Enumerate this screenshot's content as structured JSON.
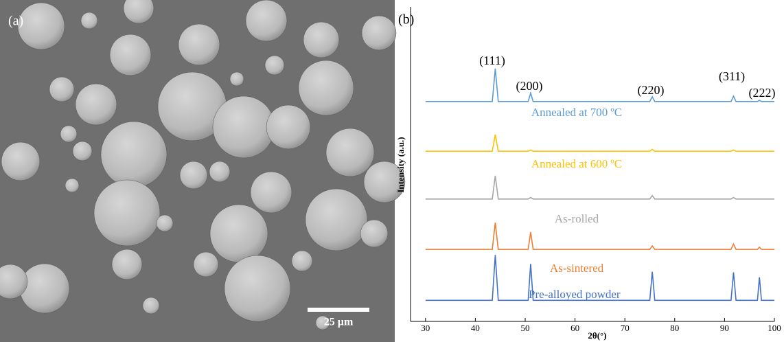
{
  "panel_a": {
    "label": "(a)",
    "scale_bar": "25 µm"
  },
  "chart_data": {
    "type": "line",
    "panel_label": "(b)",
    "ylabel": "Intensity (a.u.)",
    "xlabel": "2θ(°)",
    "xlim": [
      27,
      100
    ],
    "xticks": [
      30,
      40,
      50,
      60,
      70,
      80,
      90,
      100
    ],
    "ylim": [
      0,
      100
    ],
    "annotations": [
      "(111)",
      "(200)",
      "(220)",
      "(311)",
      "(222)"
    ],
    "x": [
      30,
      43.4,
      44,
      44.6,
      50.6,
      51.1,
      51.6,
      75,
      75.5,
      76,
      91.3,
      91.8,
      92.3,
      96.6,
      97,
      97.4,
      100
    ],
    "series": [
      {
        "name": "Annealed at 700 ºC",
        "color": "#5b9bd5",
        "values": [
          69.9,
          69.9,
          80.4,
          69.9,
          69.9,
          72.6,
          69.9,
          69.9,
          71.4,
          69.9,
          69.9,
          71.6,
          69.9,
          69.9,
          70.3,
          69.9,
          69.9
        ]
      },
      {
        "name": "Annealed at 600 ºC",
        "color": "#ffc000",
        "values": [
          54.1,
          54.1,
          59.4,
          54.1,
          54.1,
          54.5,
          54.1,
          54.1,
          54.7,
          54.1,
          54.1,
          54.5,
          54.1,
          54.1,
          54.1,
          54.1,
          54.1
        ]
      },
      {
        "name": "As-rolled",
        "color": "#a5a5a5",
        "values": [
          38.9,
          38.9,
          46.3,
          38.9,
          38.9,
          39.4,
          38.9,
          38.9,
          40.0,
          38.9,
          38.9,
          39.4,
          38.9,
          38.9,
          38.9,
          38.9,
          38.9
        ]
      },
      {
        "name": "As-sintered",
        "color": "#ed7d31",
        "values": [
          22.9,
          22.9,
          31.4,
          22.9,
          22.9,
          28.4,
          22.9,
          22.9,
          24.0,
          22.9,
          22.9,
          24.6,
          22.9,
          22.9,
          23.6,
          22.9,
          22.9
        ]
      },
      {
        "name": "Pre-alloyed powder",
        "color": "#4472c4",
        "values": [
          6.7,
          6.7,
          21.1,
          6.7,
          6.7,
          18.3,
          6.7,
          6.7,
          15.8,
          6.7,
          6.7,
          15.6,
          6.7,
          6.7,
          14.0,
          6.7,
          6.7
        ]
      }
    ]
  }
}
